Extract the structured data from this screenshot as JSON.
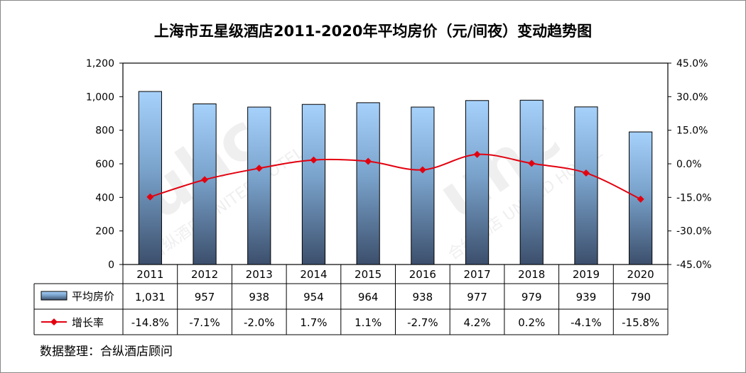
{
  "chart_data": {
    "type": "bar",
    "title": "上海市五星级酒店2011-2020年平均房价（元/间夜）变动趋势图",
    "categories": [
      "2011",
      "2012",
      "2013",
      "2014",
      "2015",
      "2016",
      "2017",
      "2018",
      "2019",
      "2020"
    ],
    "series": [
      {
        "name": "平均房价",
        "type": "bar",
        "axis": "left",
        "values": [
          1031,
          957,
          938,
          954,
          964,
          938,
          977,
          979,
          939,
          790
        ],
        "labels": [
          "1,031",
          "957",
          "938",
          "954",
          "964",
          "938",
          "977",
          "979",
          "939",
          "790"
        ]
      },
      {
        "name": "增长率",
        "type": "line",
        "axis": "right",
        "values": [
          -14.8,
          -7.1,
          -2.0,
          1.7,
          1.1,
          -2.7,
          4.2,
          0.2,
          -4.1,
          -15.8
        ],
        "labels": [
          "-14.8%",
          "-7.1%",
          "-2.0%",
          "1.7%",
          "1.1%",
          "-2.7%",
          "4.2%",
          "0.2%",
          "-4.1%",
          "-15.8%"
        ]
      }
    ],
    "y_left": {
      "range": [
        0,
        1200
      ],
      "ticks": [
        "0",
        "200",
        "400",
        "600",
        "800",
        "1,000",
        "1,200"
      ]
    },
    "y_right": {
      "range": [
        -45,
        45
      ],
      "ticks": [
        "-45.0%",
        "-30.0%",
        "-15.0%",
        "0.0%",
        "15.0%",
        "30.0%",
        "45.0%"
      ]
    },
    "legend": "data-table",
    "grid": false,
    "colors": {
      "bar_top": "#a6d1fb",
      "bar_bottom": "#3c4f6c",
      "line": "#e3000f",
      "marker": "#e3000f"
    },
    "watermark": "合纵酒店 UNITED HOTEL CONSULTANCY"
  },
  "source_note": "数据整理：合纵酒店顾问"
}
